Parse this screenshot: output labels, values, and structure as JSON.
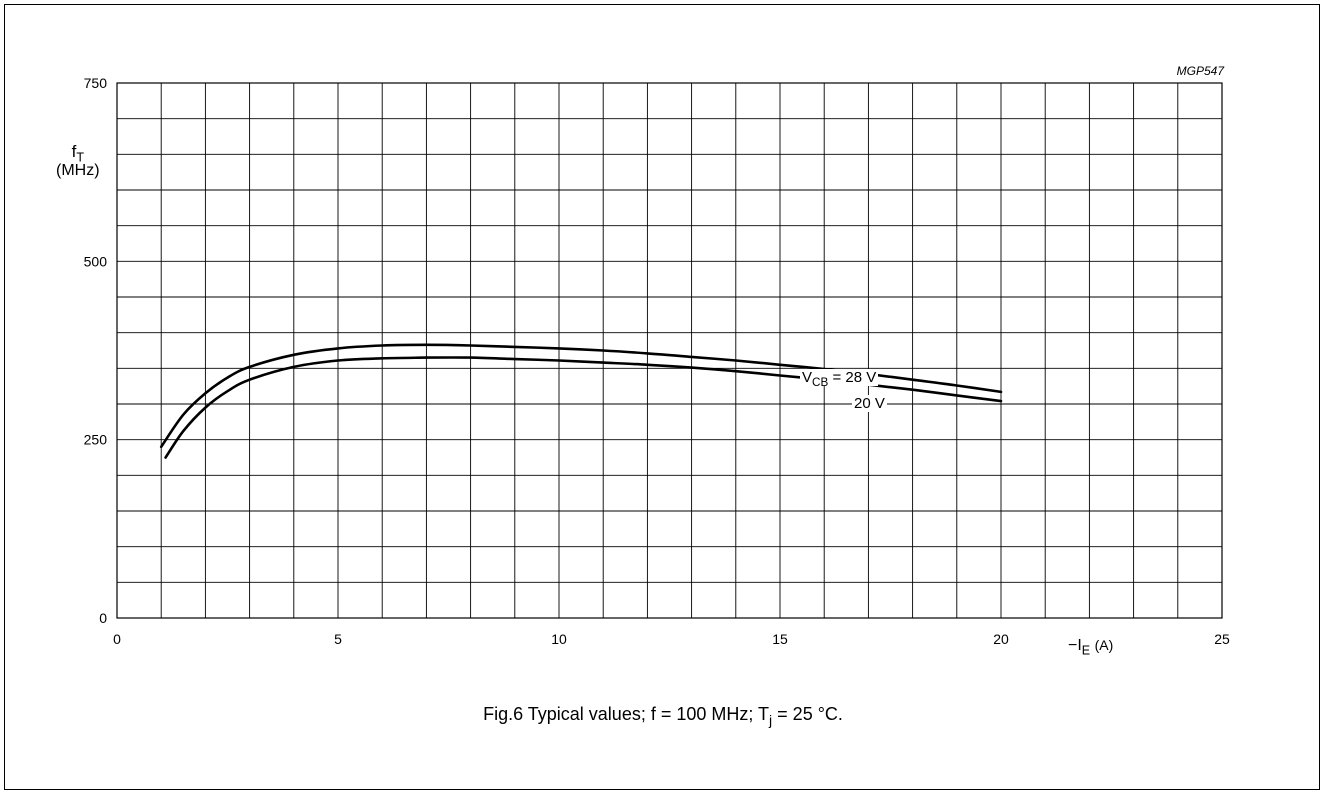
{
  "chart_data": {
    "type": "line",
    "figure_code": "MGP547",
    "ylabel_symbol": "f",
    "ylabel_sub": "T",
    "ylabel_unit": "(MHz)",
    "xlabel_prefix": "−I",
    "xlabel_sub": "E",
    "xlabel_unit": "(A)",
    "xlim": [
      0,
      25
    ],
    "ylim": [
      0,
      750
    ],
    "x_ticks": [
      "0",
      "5",
      "10",
      "15",
      "20",
      "25"
    ],
    "y_ticks": [
      "0",
      "250",
      "500",
      "750"
    ],
    "grid": true,
    "series": [
      {
        "label_prefix": "V",
        "label_sub": "CB",
        "label_value": "= 28 V",
        "points": [
          [
            1,
            240
          ],
          [
            1.5,
            285
          ],
          [
            2,
            315
          ],
          [
            2.5,
            337
          ],
          [
            3,
            352
          ],
          [
            4,
            369
          ],
          [
            5,
            378
          ],
          [
            6,
            382
          ],
          [
            7,
            383
          ],
          [
            8,
            382
          ],
          [
            9,
            380
          ],
          [
            10,
            378
          ],
          [
            11,
            375
          ],
          [
            12,
            371
          ],
          [
            13,
            366
          ],
          [
            14,
            361
          ],
          [
            15,
            355
          ],
          [
            16,
            349
          ],
          [
            17,
            342
          ],
          [
            18,
            334
          ],
          [
            19,
            326
          ],
          [
            20,
            317
          ]
        ]
      },
      {
        "label_value": "20 V",
        "points": [
          [
            1.1,
            225
          ],
          [
            1.5,
            262
          ],
          [
            2,
            295
          ],
          [
            2.5,
            318
          ],
          [
            3,
            334
          ],
          [
            4,
            352
          ],
          [
            5,
            361
          ],
          [
            6,
            364
          ],
          [
            7,
            365
          ],
          [
            8,
            365
          ],
          [
            9,
            363
          ],
          [
            10,
            361
          ],
          [
            11,
            358
          ],
          [
            12,
            355
          ],
          [
            13,
            351
          ],
          [
            14,
            346
          ],
          [
            15,
            340
          ],
          [
            16,
            334
          ],
          [
            17,
            327
          ],
          [
            18,
            320
          ],
          [
            19,
            312
          ],
          [
            20,
            304
          ]
        ]
      }
    ]
  },
  "caption": {
    "prefix": "Fig.6  Typical values; f = 100 MHz; T",
    "sub": "j",
    "suffix": " = 25 °C."
  }
}
